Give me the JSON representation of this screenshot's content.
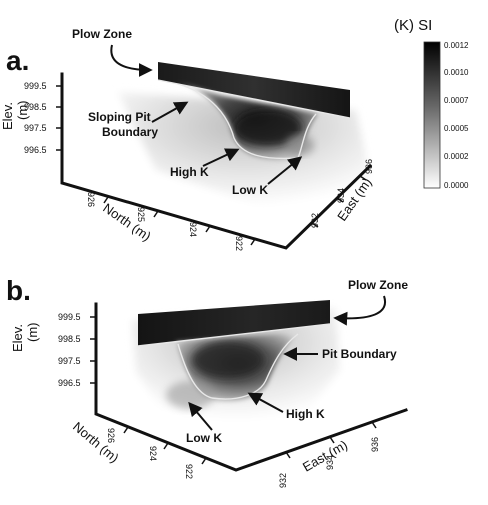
{
  "colorbar": {
    "title": "(K) SI",
    "ticks": [
      "0.0012",
      "0.0010",
      "0.0007",
      "0.0005",
      "0.0002",
      "0.0000"
    ]
  },
  "panel_a": {
    "label": "a.",
    "annotations": {
      "plow_zone": "Plow Zone",
      "sloping_pit_line1": "Sloping Pit",
      "sloping_pit_line2": "Boundary",
      "high_k": "High K",
      "low_k": "Low K"
    },
    "elev_axis": {
      "title_line1": "Elev.",
      "title_line2": "(m)",
      "ticks": [
        "999.5",
        "998.5",
        "997.5",
        "996.5"
      ]
    },
    "north_axis": {
      "title": "North (m)",
      "ticks": [
        "926",
        "925",
        "924",
        "922"
      ]
    },
    "east_axis": {
      "title": "East (m)",
      "ticks": [
        "932",
        "934",
        "936"
      ]
    }
  },
  "panel_b": {
    "label": "b.",
    "annotations": {
      "plow_zone": "Plow Zone",
      "pit_boundary": "Pit Boundary",
      "high_k": "High K",
      "low_k": "Low K"
    },
    "elev_axis": {
      "title_line1": "Elev.",
      "title_line2": "(m)",
      "ticks": [
        "999.5",
        "998.5",
        "997.5",
        "996.5"
      ]
    },
    "north_axis": {
      "title": "North (m)",
      "ticks": [
        "926",
        "924",
        "922"
      ]
    },
    "east_axis": {
      "title": "East (m)",
      "ticks": [
        "932",
        "934",
        "936"
      ]
    }
  }
}
